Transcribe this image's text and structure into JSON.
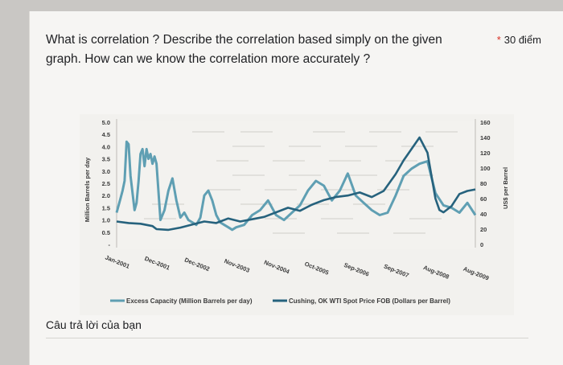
{
  "question": {
    "text": "What is correlation ? Describe the correlation based simply on the given graph. How can we know the correlation more accurately ?",
    "required_mark": "*",
    "points": "30 điểm"
  },
  "answer": {
    "placeholder": "Câu trả lời của bạn"
  },
  "chart_data": {
    "type": "line",
    "title": "",
    "xlabel": "",
    "ylabel_left": "Million Barrels per day",
    "ylabel_right": "US$ per Barrel",
    "x_tick_labels": [
      "Jan-2001",
      "Dec-2001",
      "Dec-2002",
      "Nov-2003",
      "Nov-2004",
      "Oct-2005",
      "Sep-2006",
      "Sep-2007",
      "Aug-2008",
      "Aug-2009"
    ],
    "y_left_ticks": [
      "5.0",
      "4.5",
      "4.0",
      "3.5",
      "3.0",
      "2.5",
      "2.0",
      "1.5",
      "1.0",
      "0.5",
      "-"
    ],
    "y_left_range": [
      0,
      5.0
    ],
    "y_right_ticks": [
      "160",
      "140",
      "120",
      "100",
      "80",
      "60",
      "40",
      "20",
      "0"
    ],
    "y_right_range": [
      0,
      160
    ],
    "grid": false,
    "legend_position": "bottom",
    "series": [
      {
        "name": "Excess Capacity (Million Barrels per day)",
        "color": "#5f9fb3",
        "axis": "left",
        "x": [
          0,
          0.05,
          0.1,
          0.15,
          0.2,
          0.25,
          0.3,
          0.35,
          0.4,
          0.45,
          0.5,
          0.55,
          0.6,
          0.65,
          0.7,
          0.75,
          0.8,
          0.85,
          0.9,
          0.95,
          1.0,
          1.1,
          1.2,
          1.3,
          1.4,
          1.5,
          1.6,
          1.7,
          1.8,
          1.9,
          2.0,
          2.1,
          2.2,
          2.3,
          2.4,
          2.5,
          2.6,
          2.7,
          2.8,
          2.9,
          3.0,
          3.2,
          3.4,
          3.6,
          3.8,
          4.0,
          4.2,
          4.4,
          4.6,
          4.8,
          5.0,
          5.2,
          5.4,
          5.6,
          5.8,
          6.0,
          6.2,
          6.4,
          6.6,
          6.8,
          7.0,
          7.2,
          7.4,
          7.6,
          7.8,
          8.0,
          8.2,
          8.4,
          8.6,
          8.8,
          9.0
        ],
        "values": [
          1.3,
          1.6,
          1.9,
          2.2,
          2.6,
          4.2,
          4.1,
          2.8,
          2.1,
          1.4,
          1.7,
          2.6,
          3.7,
          3.9,
          3.2,
          3.9,
          3.5,
          3.7,
          3.3,
          3.6,
          3.3,
          1.0,
          1.4,
          2.2,
          2.7,
          1.8,
          1.1,
          1.3,
          1.0,
          0.9,
          0.8,
          1.1,
          2.0,
          2.2,
          1.8,
          1.2,
          0.9,
          0.8,
          0.7,
          0.6,
          0.7,
          0.8,
          1.2,
          1.4,
          1.8,
          1.2,
          1.0,
          1.3,
          1.6,
          2.2,
          2.6,
          2.4,
          1.8,
          2.2,
          2.9,
          2.0,
          1.7,
          1.4,
          1.2,
          1.3,
          2.0,
          2.8,
          3.1,
          3.3,
          3.4,
          2.1,
          1.6,
          1.5,
          1.3,
          1.7,
          1.2
        ]
      },
      {
        "name": "Cushing, OK WTI Spot Price FOB (Dollars per Barrel)",
        "color": "#26627d",
        "axis": "right",
        "x": [
          0,
          0.3,
          0.6,
          0.9,
          1.0,
          1.3,
          1.6,
          1.9,
          2.2,
          2.5,
          2.8,
          3.1,
          3.4,
          3.7,
          4.0,
          4.3,
          4.6,
          4.9,
          5.2,
          5.5,
          5.8,
          6.1,
          6.4,
          6.7,
          7.0,
          7.2,
          7.4,
          7.6,
          7.8,
          8.0,
          8.1,
          8.2,
          8.4,
          8.6,
          8.8,
          9.0
        ],
        "values": [
          30,
          28,
          27,
          24,
          20,
          19,
          22,
          26,
          30,
          28,
          34,
          30,
          33,
          36,
          42,
          48,
          44,
          52,
          58,
          62,
          64,
          68,
          62,
          70,
          92,
          110,
          125,
          140,
          120,
          60,
          45,
          42,
          50,
          66,
          70,
          72
        ]
      }
    ]
  }
}
